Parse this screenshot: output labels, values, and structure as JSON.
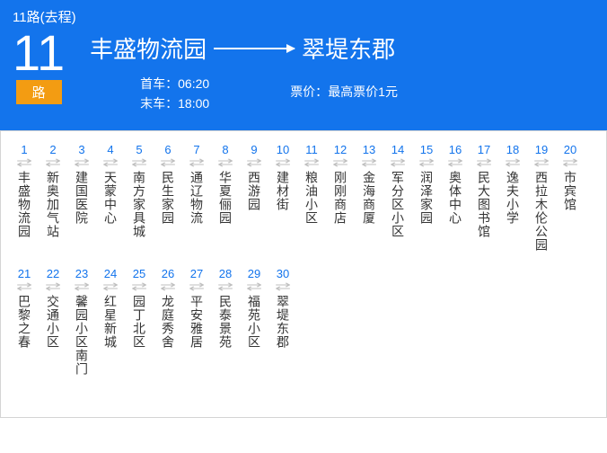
{
  "header": {
    "title": "11路(去程)",
    "route_number": "11",
    "route_suffix": "路",
    "origin": "丰盛物流园",
    "destination": "翠堤东郡",
    "first_label": "首车：",
    "first_time": "06:20",
    "last_label": "末车：",
    "last_time": "18:00",
    "fare_label": "票价：",
    "fare_value": "最高票价1元",
    "colors": {
      "bg": "#1374ec",
      "accent": "#f39c12"
    }
  },
  "stops": {
    "row1": [
      {
        "n": "1",
        "name": "丰盛物流园"
      },
      {
        "n": "2",
        "name": "新奥加气站"
      },
      {
        "n": "3",
        "name": "建国医院"
      },
      {
        "n": "4",
        "name": "天蒙中心"
      },
      {
        "n": "5",
        "name": "南方家具城"
      },
      {
        "n": "6",
        "name": "民生家园"
      },
      {
        "n": "7",
        "name": "通辽物流"
      },
      {
        "n": "8",
        "name": "华夏俪园"
      },
      {
        "n": "9",
        "name": "西游园"
      },
      {
        "n": "10",
        "name": "建材街"
      },
      {
        "n": "11",
        "name": "粮油小区"
      },
      {
        "n": "12",
        "name": "刚刚商店"
      },
      {
        "n": "13",
        "name": "金海商厦"
      },
      {
        "n": "14",
        "name": "军分区小区"
      },
      {
        "n": "15",
        "name": "润泽家园"
      },
      {
        "n": "16",
        "name": "奥体中心"
      },
      {
        "n": "17",
        "name": "民大图书馆"
      },
      {
        "n": "18",
        "name": "逸夫小学"
      },
      {
        "n": "19",
        "name": "西拉木伦公园"
      },
      {
        "n": "20",
        "name": "市宾馆"
      }
    ],
    "row2": [
      {
        "n": "21",
        "name": "巴黎之春"
      },
      {
        "n": "22",
        "name": "交通小区"
      },
      {
        "n": "23",
        "name": "馨园小区南门"
      },
      {
        "n": "24",
        "name": "红星新城"
      },
      {
        "n": "25",
        "name": "园丁北区"
      },
      {
        "n": "26",
        "name": "龙庭秀舍"
      },
      {
        "n": "27",
        "name": "平安雅居"
      },
      {
        "n": "28",
        "name": "民泰景苑"
      },
      {
        "n": "29",
        "name": "福苑小区"
      },
      {
        "n": "30",
        "name": "翠堤东郡"
      }
    ]
  }
}
